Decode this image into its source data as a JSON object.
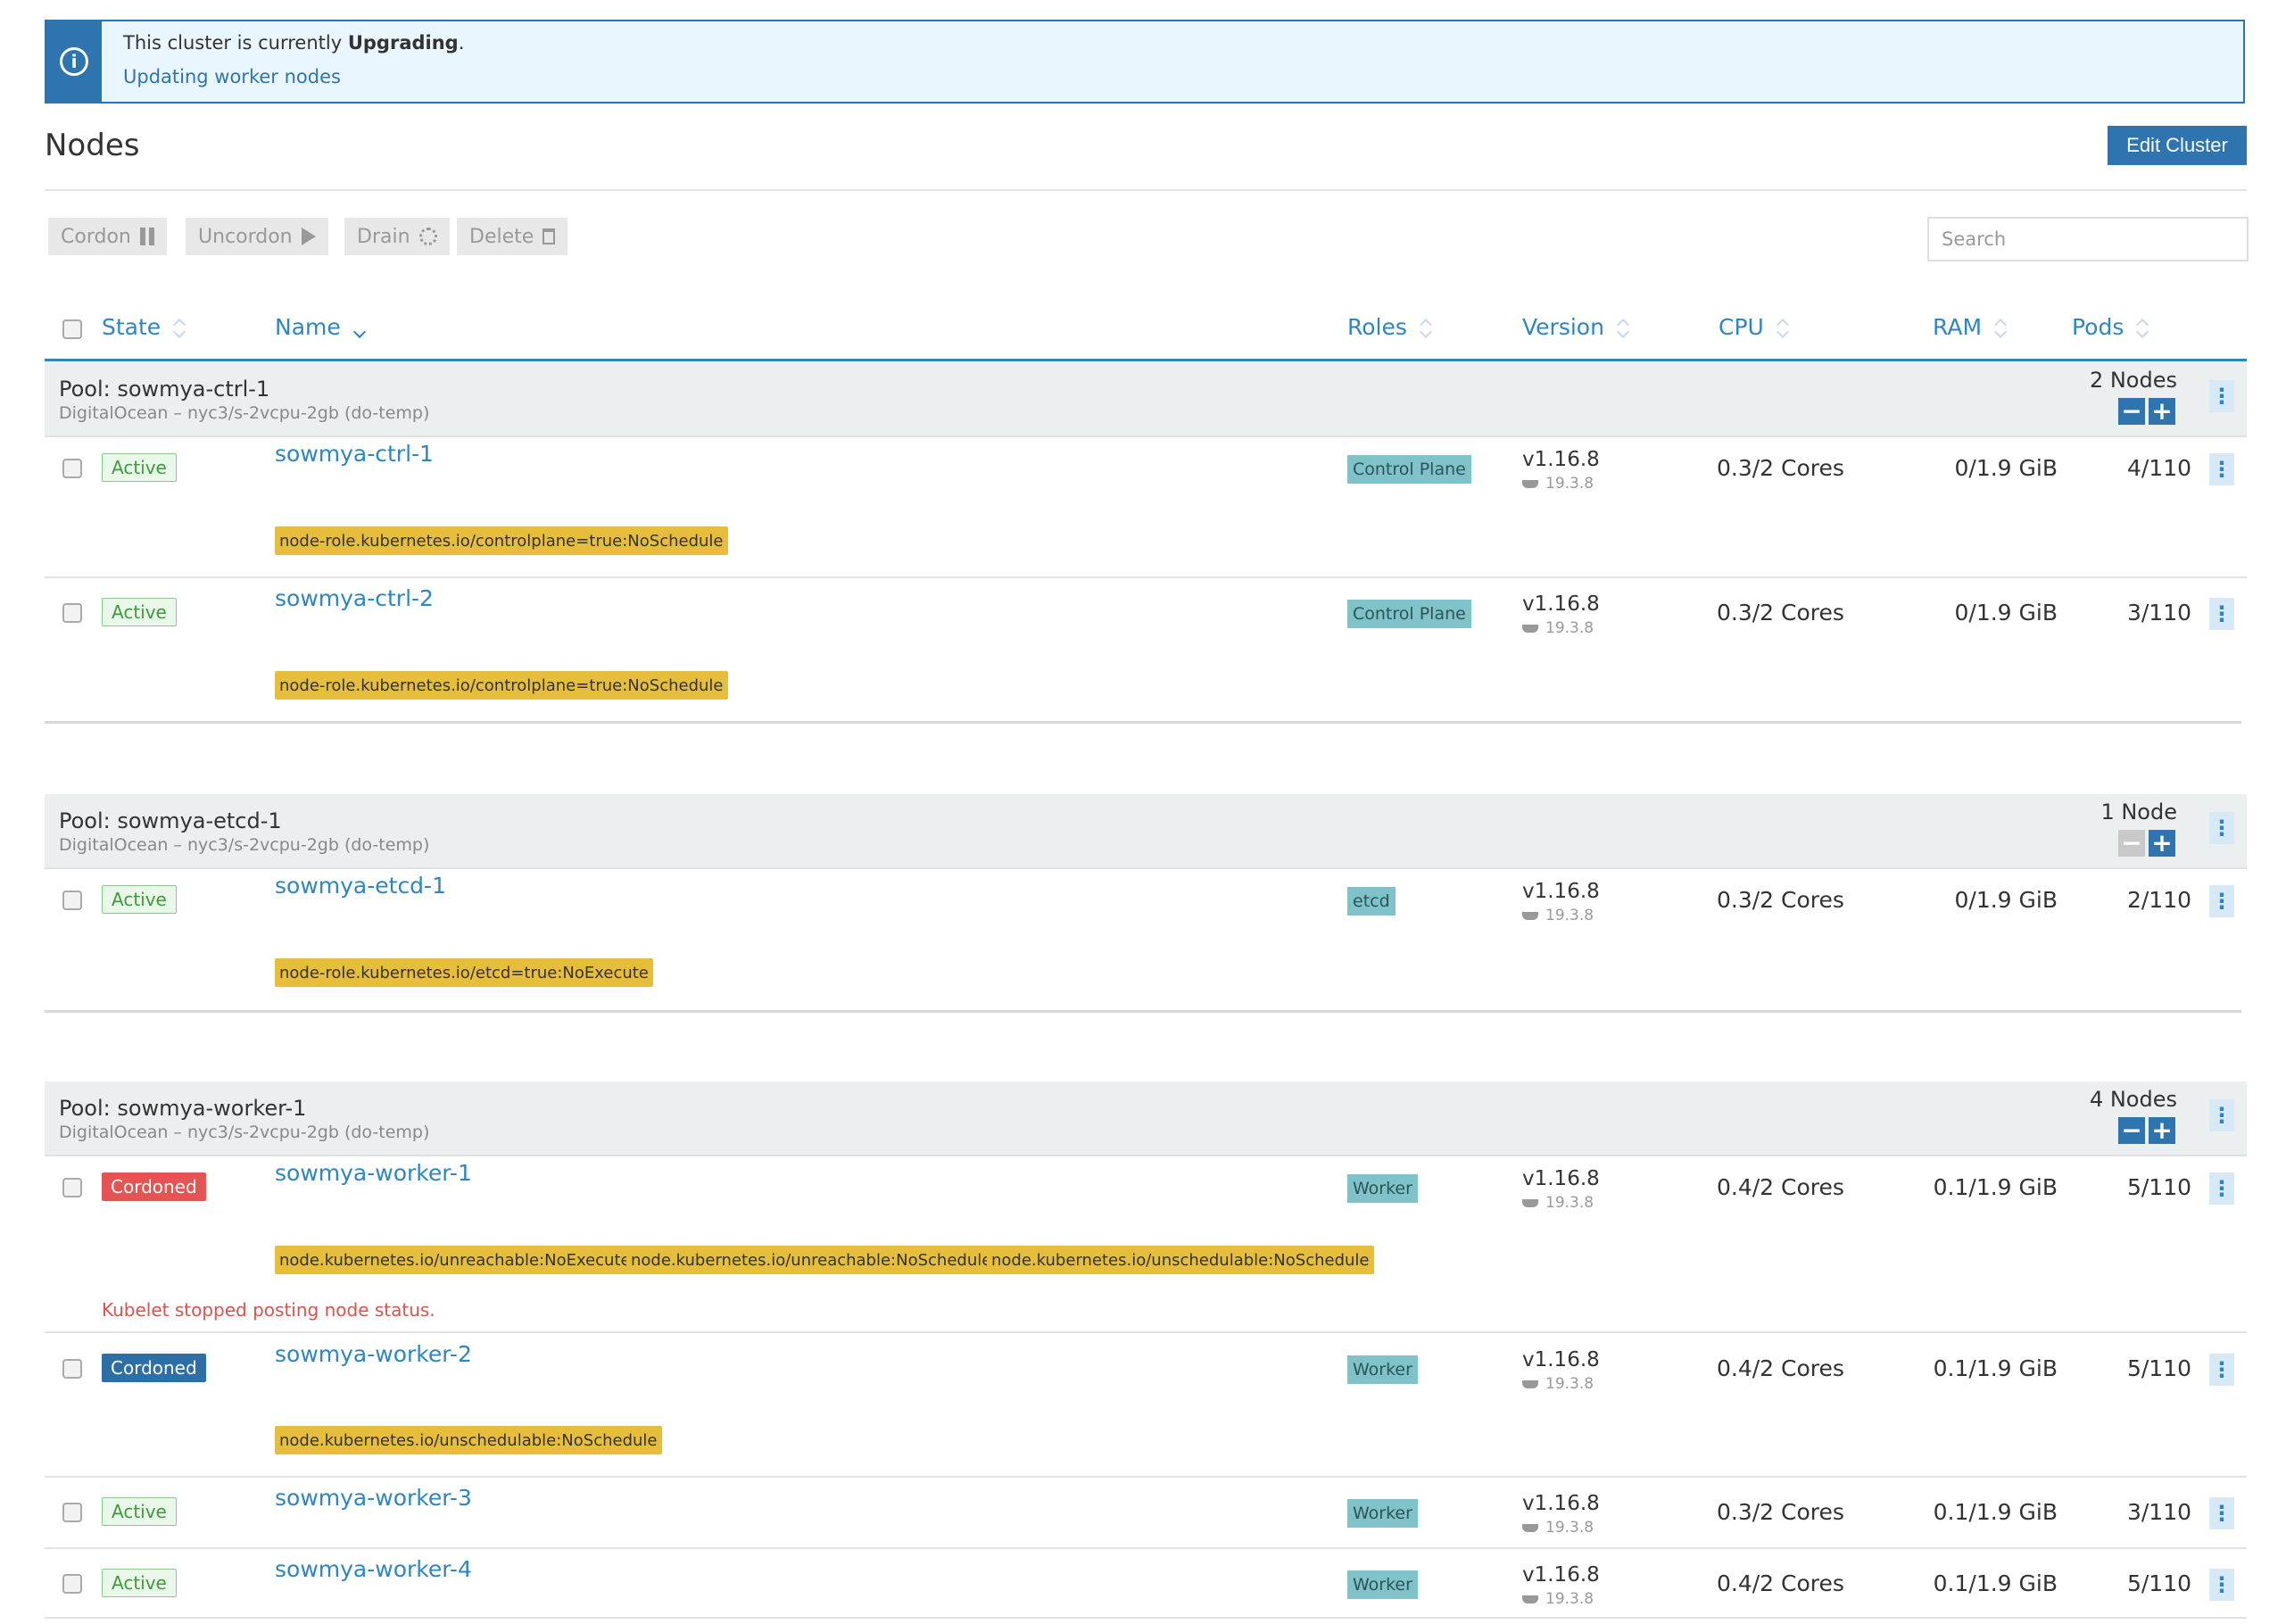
{
  "banner": {
    "prefix": "This cluster is currently",
    "state": "Upgrading",
    "suffix": ".",
    "detail": "Updating worker nodes"
  },
  "page": {
    "title": "Nodes",
    "edit_label": "Edit Cluster"
  },
  "toolbar": {
    "cordon": "Cordon",
    "uncordon": "Uncordon",
    "drain": "Drain",
    "delete": "Delete",
    "search_placeholder": "Search"
  },
  "columns": {
    "state": "State",
    "name": "Name",
    "roles": "Roles",
    "version": "Version",
    "cpu": "CPU",
    "ram": "RAM",
    "pods": "Pods"
  },
  "pools": [
    {
      "title": "Pool: sowmya-ctrl-1",
      "sub": "DigitalOcean – nyc3/s-2vcpu-2gb (do-temp)",
      "count": "2 Nodes",
      "nodes": [
        {
          "state": "Active",
          "name": "sowmya-ctrl-1",
          "role": "Control Plane",
          "version": "v1.16.8",
          "docker": "19.3.8",
          "cpu": "0.3/2 Cores",
          "ram": "0/1.9 GiB",
          "pods": "4/110",
          "taints": [
            "node-role.kubernetes.io/controlplane=true:NoSchedule"
          ]
        },
        {
          "state": "Active",
          "name": "sowmya-ctrl-2",
          "role": "Control Plane",
          "version": "v1.16.8",
          "docker": "19.3.8",
          "cpu": "0.3/2 Cores",
          "ram": "0/1.9 GiB",
          "pods": "3/110",
          "taints": [
            "node-role.kubernetes.io/controlplane=true:NoSchedule"
          ]
        }
      ]
    },
    {
      "title": "Pool: sowmya-etcd-1",
      "sub": "DigitalOcean – nyc3/s-2vcpu-2gb (do-temp)",
      "count": "1 Node",
      "nodes": [
        {
          "state": "Active",
          "name": "sowmya-etcd-1",
          "role": "etcd",
          "version": "v1.16.8",
          "docker": "19.3.8",
          "cpu": "0.3/2 Cores",
          "ram": "0/1.9 GiB",
          "pods": "2/110",
          "taints": [
            "node-role.kubernetes.io/etcd=true:NoExecute"
          ]
        }
      ]
    },
    {
      "title": "Pool: sowmya-worker-1",
      "sub": "DigitalOcean – nyc3/s-2vcpu-2gb (do-temp)",
      "count": "4 Nodes",
      "nodes": [
        {
          "state": "Cordoned",
          "name": "sowmya-worker-1",
          "role": "Worker",
          "version": "v1.16.8",
          "docker": "19.3.8",
          "cpu": "0.4/2 Cores",
          "ram": "0.1/1.9 GiB",
          "pods": "5/110",
          "taints": [
            "node.kubernetes.io/unreachable:NoExecute",
            "node.kubernetes.io/unreachable:NoSchedule",
            "node.kubernetes.io/unschedulable:NoSchedule"
          ],
          "error": "Kubelet stopped posting node status."
        },
        {
          "state": "Cordoned",
          "name": "sowmya-worker-2",
          "role": "Worker",
          "version": "v1.16.8",
          "docker": "19.3.8",
          "cpu": "0.4/2 Cores",
          "ram": "0.1/1.9 GiB",
          "pods": "5/110",
          "taints": [
            "node.kubernetes.io/unschedulable:NoSchedule"
          ]
        },
        {
          "state": "Active",
          "name": "sowmya-worker-3",
          "role": "Worker",
          "version": "v1.16.8",
          "docker": "19.3.8",
          "cpu": "0.3/2 Cores",
          "ram": "0.1/1.9 GiB",
          "pods": "3/110",
          "taints": []
        },
        {
          "state": "Active",
          "name": "sowmya-worker-4",
          "role": "Worker",
          "version": "v1.16.8",
          "docker": "19.3.8",
          "cpu": "0.4/2 Cores",
          "ram": "0.1/1.9 GiB",
          "pods": "5/110",
          "taints": []
        }
      ]
    }
  ]
}
